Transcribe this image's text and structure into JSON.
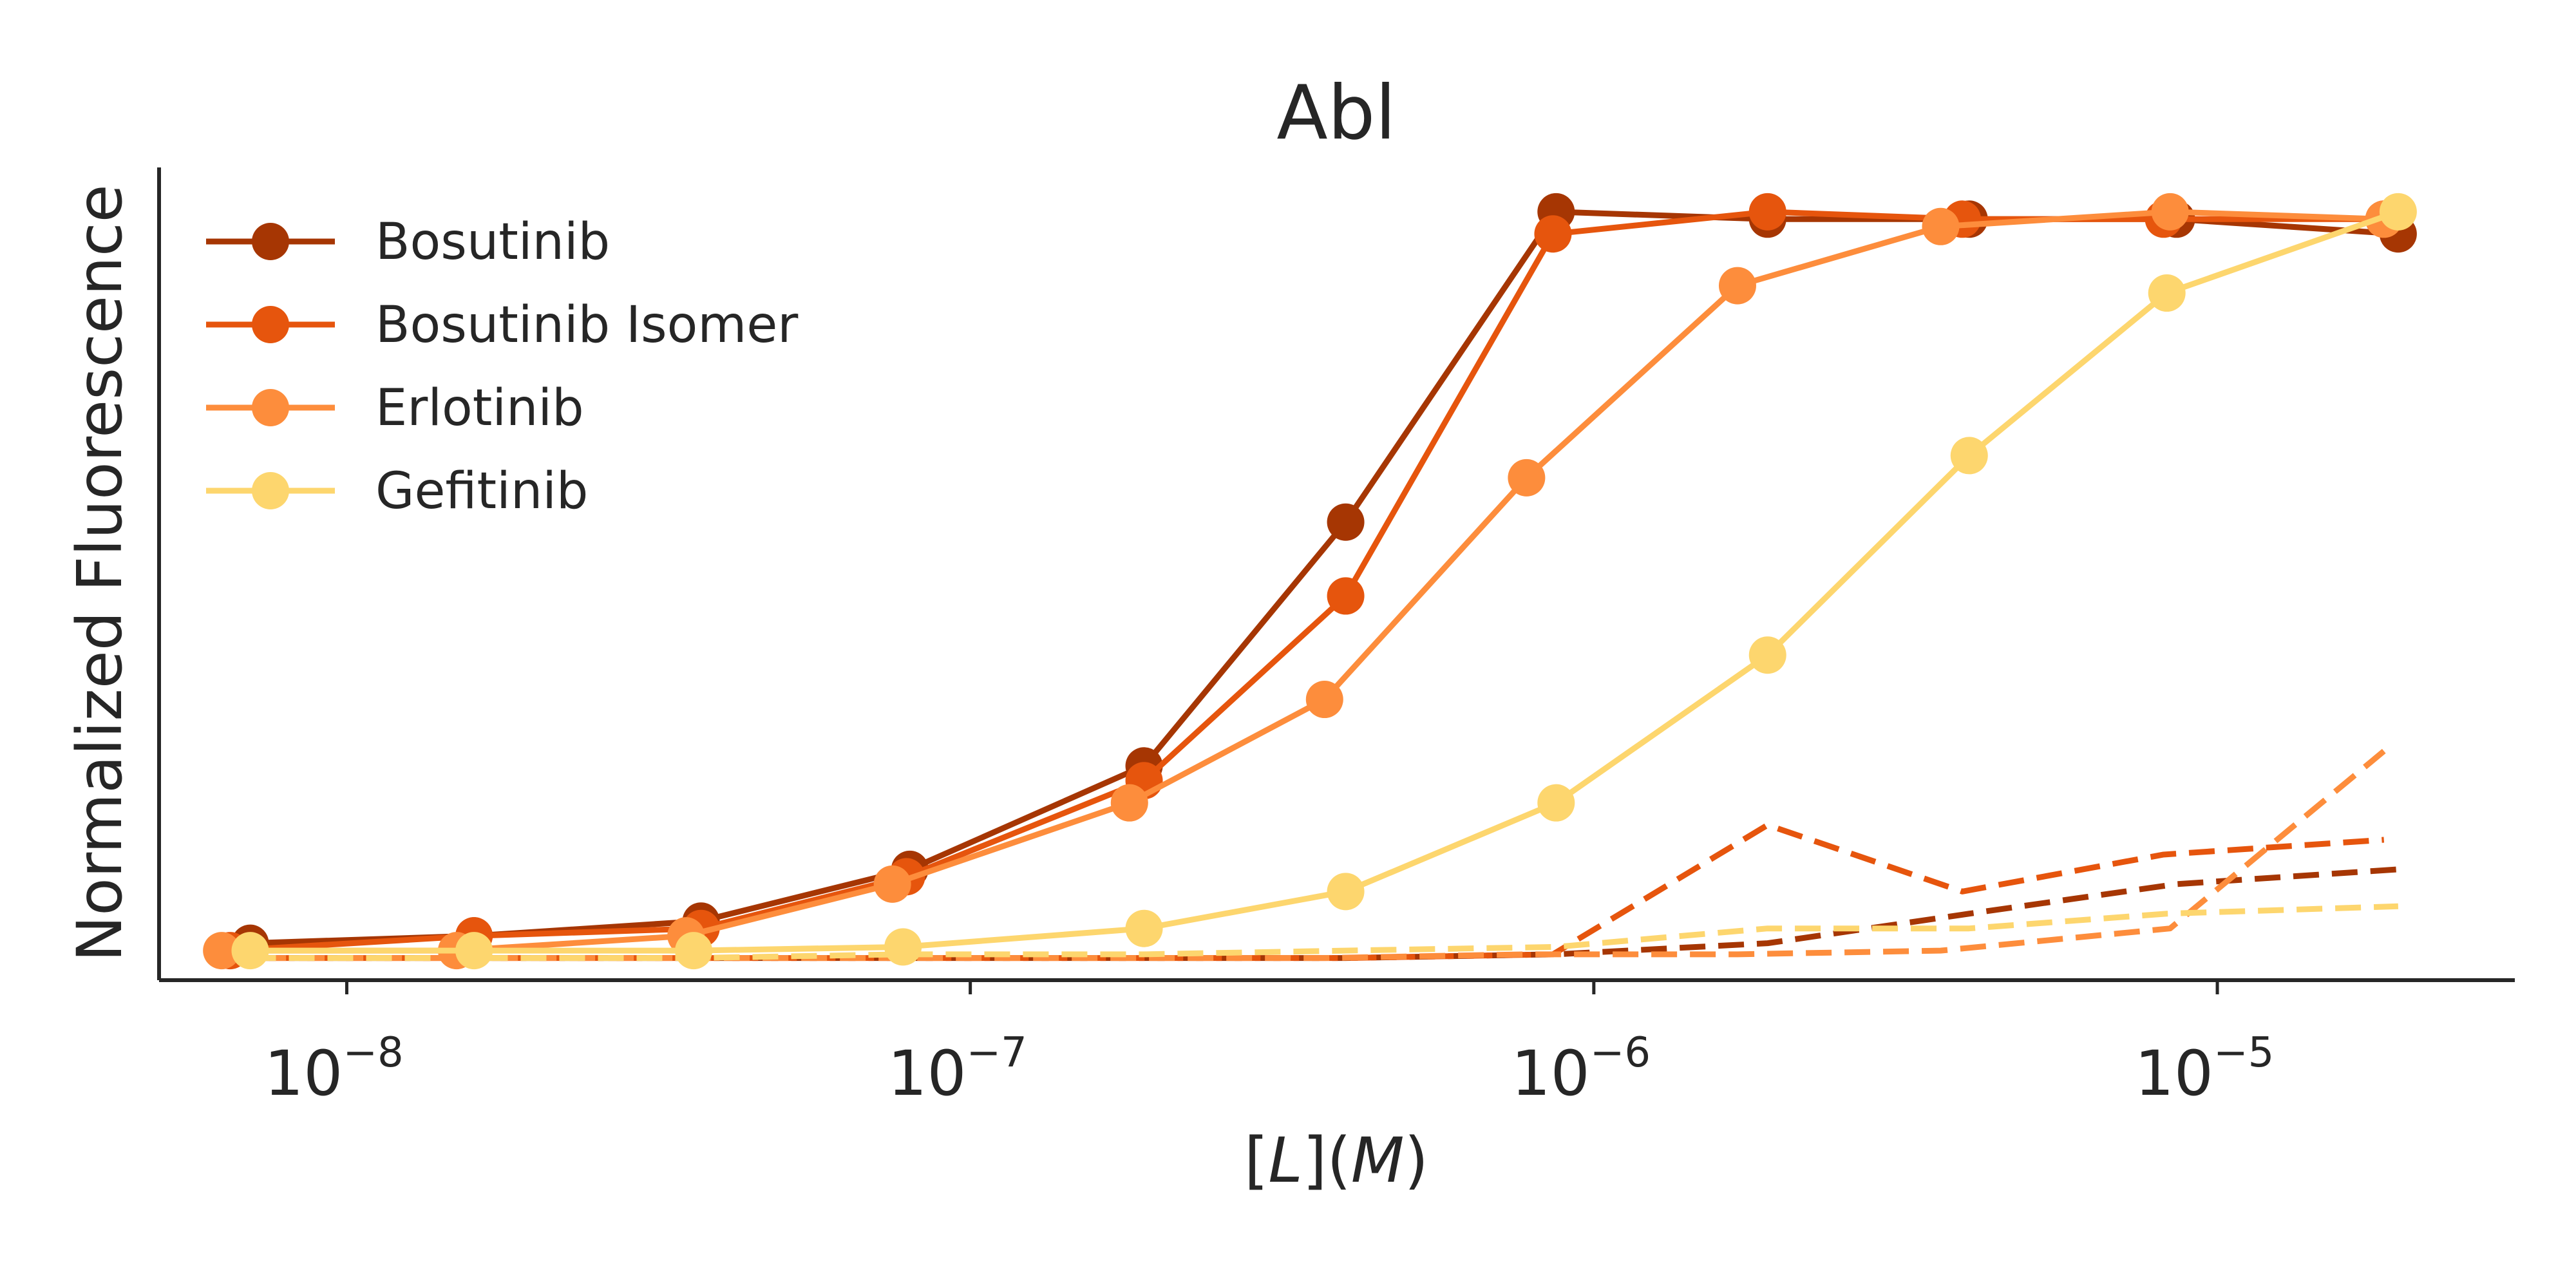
{
  "chart_data": {
    "type": "line",
    "title": "Abl",
    "xlabel": "[L](M)",
    "ylabel": "Normalized Fluorescence",
    "x_scale": "log",
    "xlim": [
      5e-09,
      3e-05
    ],
    "ylim": [
      -0.04,
      1.06
    ],
    "x_ticks": [
      {
        "base": "10",
        "exp": "−8",
        "value": 1e-08
      },
      {
        "base": "10",
        "exp": "−7",
        "value": 1e-07
      },
      {
        "base": "10",
        "exp": "−6",
        "value": 1e-06
      },
      {
        "base": "10",
        "exp": "−5",
        "value": 1e-05
      }
    ],
    "y_ticks_shown": false,
    "grid": false,
    "legend_position": "upper-left",
    "series": [
      {
        "name": "Bosutinib",
        "color": "#a63603",
        "x": [
          7e-09,
          1.6e-08,
          3.7e-08,
          8e-08,
          1.9e-07,
          4e-07,
          8.7e-07,
          1.9e-06,
          4e-06,
          8.6e-06,
          1.95e-05
        ],
        "y": [
          0.01,
          0.02,
          0.04,
          0.11,
          0.25,
          0.58,
          1.0,
          0.99,
          0.99,
          0.99,
          0.97
        ],
        "control_y": [
          -0.01,
          -0.01,
          -0.01,
          -0.01,
          -0.01,
          -0.01,
          -0.005,
          0.01,
          0.05,
          0.09,
          0.11
        ]
      },
      {
        "name": "Bosutinib Isomer",
        "color": "#e6550d",
        "x": [
          6.5e-09,
          1.6e-08,
          3.7e-08,
          7.9e-08,
          1.9e-07,
          4e-07,
          8.6e-07,
          1.9e-06,
          3.9e-06,
          8.2e-06,
          1.85e-05
        ],
        "y": [
          0.0,
          0.02,
          0.03,
          0.1,
          0.23,
          0.48,
          0.97,
          1.0,
          0.99,
          0.99,
          0.99
        ],
        "control_y": [
          -0.01,
          -0.01,
          -0.01,
          -0.01,
          -0.01,
          -0.01,
          -0.005,
          0.17,
          0.08,
          0.13,
          0.15
        ]
      },
      {
        "name": "Erlotinib",
        "color": "#fd8d3c",
        "x": [
          6.3e-09,
          1.5e-08,
          3.5e-08,
          7.5e-08,
          1.8e-07,
          3.7e-07,
          7.8e-07,
          1.7e-06,
          3.6e-06,
          8.4e-06,
          1.85e-05
        ],
        "y": [
          0.0,
          0.0,
          0.02,
          0.09,
          0.2,
          0.34,
          0.64,
          0.9,
          0.98,
          1.0,
          0.99
        ],
        "control_y": [
          -0.01,
          -0.01,
          -0.01,
          -0.01,
          -0.01,
          -0.01,
          -0.005,
          -0.005,
          0.0,
          0.03,
          0.27
        ]
      },
      {
        "name": "Gefitinib",
        "color": "#fdd66e",
        "x": [
          7e-09,
          1.6e-08,
          3.6e-08,
          7.8e-08,
          1.9e-07,
          4e-07,
          8.7e-07,
          1.9e-06,
          4e-06,
          8.3e-06,
          1.95e-05
        ],
        "y": [
          0.0,
          0.0,
          0.0,
          0.005,
          0.03,
          0.08,
          0.2,
          0.4,
          0.67,
          0.89,
          1.0
        ],
        "control_y": [
          -0.01,
          -0.01,
          -0.01,
          -0.005,
          -0.005,
          0.0,
          0.005,
          0.03,
          0.03,
          0.05,
          0.06
        ]
      }
    ]
  }
}
